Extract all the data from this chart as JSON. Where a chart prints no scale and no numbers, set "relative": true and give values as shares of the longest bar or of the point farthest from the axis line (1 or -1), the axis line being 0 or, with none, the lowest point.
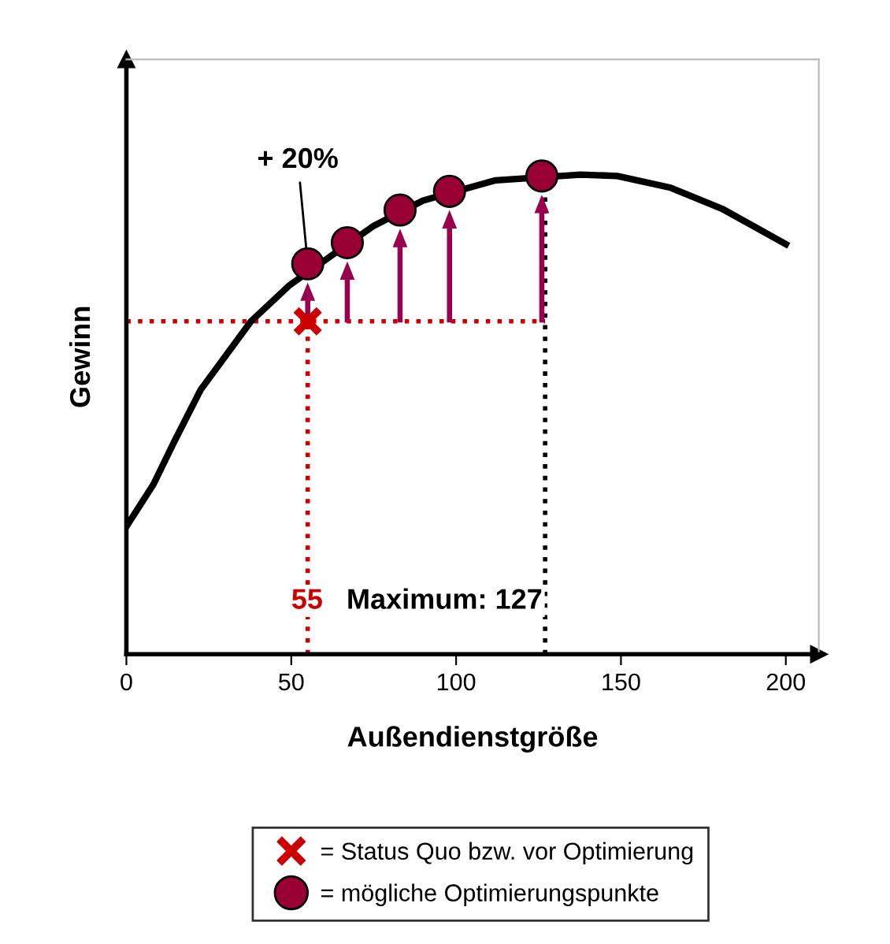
{
  "chart_data": {
    "type": "line",
    "xlabel": "Außendienstgröße",
    "ylabel": "Gewinn",
    "relative": true,
    "xlim": [
      0,
      210
    ],
    "xticks": [
      0,
      50,
      100,
      150,
      200
    ],
    "tick_labels": "x",
    "grid": false,
    "legend": "bottom",
    "marker": "none",
    "line_style": "solid",
    "series": [
      {
        "color": "#000000",
        "x": [
          0,
          8.2,
          14.5,
          22.5,
          37.8,
          49.6,
          75,
          90,
          112,
          137.8,
          148.9,
          164.8,
          180.6,
          200
        ],
        "values": [
          0.266,
          0.354,
          0.443,
          0.551,
          0.694,
          0.77,
          0.893,
          0.946,
          0.988,
          1.0,
          0.997,
          0.973,
          0.929,
          0.855
        ]
      },
      {
        "type": "scatter",
        "name": "= Status Quo bzw. vor Optimierung",
        "marker": "cross",
        "color": "#cc0000",
        "x": [
          55
        ],
        "values": [
          0.694
        ]
      },
      {
        "type": "scatter",
        "name": "= mögliche Optimierungspunkte",
        "marker": "circle",
        "color": "#990033",
        "x": [
          55,
          67,
          83,
          98,
          126
        ],
        "values": [
          0.814,
          0.858,
          0.926,
          0.965,
          0.997
        ]
      }
    ],
    "ref_lines": [
      {
        "axis": "y",
        "value": 0.694,
        "color": "#cc0000",
        "line_style": "dotted"
      },
      {
        "axis": "x",
        "value": 55,
        "label": "55",
        "color": "#cc0000",
        "line_style": "dotted"
      },
      {
        "axis": "x",
        "value": 127,
        "label": "Maximum: 127",
        "color": "#000000",
        "line_style": "dotted"
      }
    ],
    "annotations": [
      {
        "text": "+ 20%",
        "x": 55,
        "y": 0.814
      }
    ]
  }
}
